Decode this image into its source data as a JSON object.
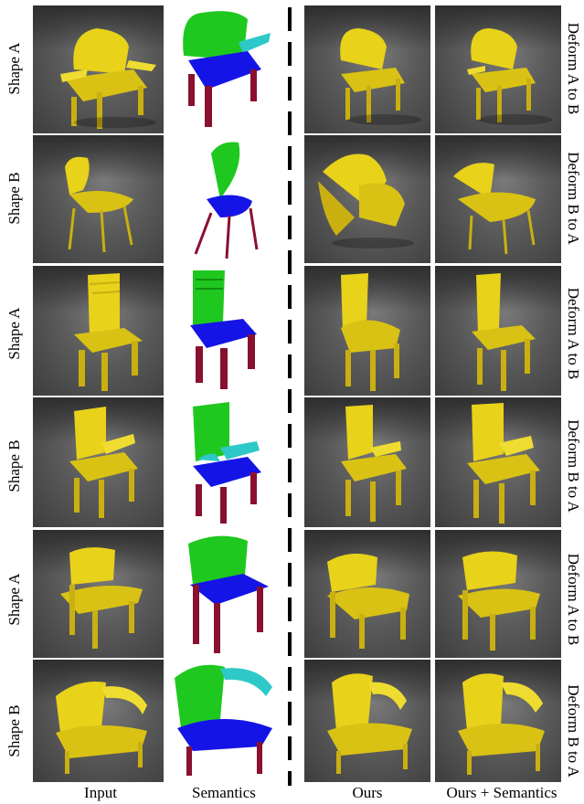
{
  "columns": [
    "Input",
    "Semantics",
    "Ours",
    "Ours + Semantics"
  ],
  "left_row_labels": [
    "Shape A",
    "Shape B",
    "Shape A",
    "Shape B",
    "Shape A",
    "Shape B"
  ],
  "right_row_labels": [
    "Deform A to B",
    "Deform B to A",
    "Deform A to B",
    "Deform B to A",
    "Deform A to B",
    "Deform B to A"
  ],
  "colors": {
    "chair_yellow": "#e8d21a",
    "semantic_back": "#1fc81f",
    "semantic_seat": "#1414e6",
    "semantic_arm": "#2ec8c8",
    "semantic_leg": "#8a1030"
  }
}
